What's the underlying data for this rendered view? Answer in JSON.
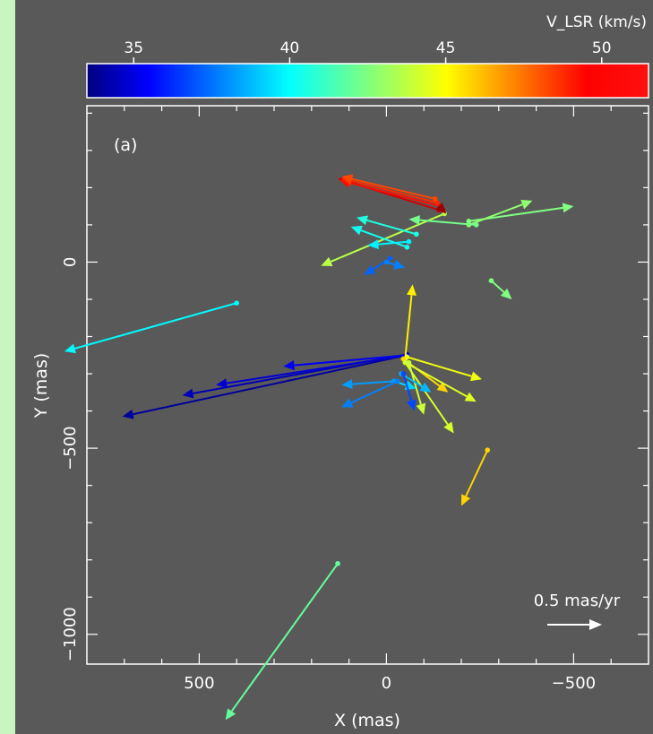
{
  "chart_data": {
    "type": "vector-field",
    "panel_label": "(a)",
    "xlabel": "X (mas)",
    "ylabel": "Y (mas)",
    "xlim": [
      800,
      -700
    ],
    "ylim": [
      -1080,
      420
    ],
    "x_ticks": [
      500,
      0,
      -500
    ],
    "x_tick_labels": [
      "500",
      "0",
      "−500"
    ],
    "y_ticks": [
      0,
      -500,
      -1000
    ],
    "y_tick_labels": [
      "0",
      "−500",
      "−1000"
    ],
    "colorbar": {
      "label": "V_LSR (km/s)",
      "vmin": 33.5,
      "vmax": 51.5,
      "ticks": [
        35,
        40,
        45,
        50
      ],
      "tick_labels": [
        "35",
        "40",
        "45",
        "50"
      ]
    },
    "scale_arrow": {
      "label": "0.5 mas/yr"
    },
    "colors": {
      "background": "#595959",
      "frame": "#c8f5c0",
      "axes": "#ffffff"
    },
    "features": [
      {
        "x": -155,
        "y": 130,
        "dx": 330,
        "dy": -140,
        "v": 43.5
      },
      {
        "x": -140,
        "y": 140,
        "dx": 270,
        "dy": 85,
        "v": 50.0
      },
      {
        "x": -145,
        "y": 150,
        "dx": 270,
        "dy": 70,
        "v": 49.0
      },
      {
        "x": -135,
        "y": 160,
        "dx": 255,
        "dy": 65,
        "v": 48.5
      },
      {
        "x": -130,
        "y": 170,
        "dx": 250,
        "dy": 60,
        "v": 48.0
      },
      {
        "x": -150,
        "y": 140,
        "dx": -10,
        "dy": -10,
        "v": 51.0
      },
      {
        "x": -220,
        "y": 110,
        "dx": -280,
        "dy": 40,
        "v": 42.5
      },
      {
        "x": -220,
        "y": 100,
        "dx": -170,
        "dy": 65,
        "v": 42.8
      },
      {
        "x": -240,
        "y": 100,
        "dx": 180,
        "dy": 15,
        "v": 42.3
      },
      {
        "x": -80,
        "y": 75,
        "dx": 160,
        "dy": 45,
        "v": 40.8
      },
      {
        "x": -55,
        "y": 40,
        "dx": 150,
        "dy": 55,
        "v": 40.5
      },
      {
        "x": -60,
        "y": 55,
        "dx": 110,
        "dy": -10,
        "v": 40.0
      },
      {
        "x": -10,
        "y": 10,
        "dx": 70,
        "dy": -45,
        "v": 37.5
      },
      {
        "x": 0,
        "y": 0,
        "dx": -50,
        "dy": -15,
        "v": 38.0
      },
      {
        "x": -280,
        "y": -50,
        "dx": -55,
        "dy": -50,
        "v": 42.5
      },
      {
        "x": 400,
        "y": -110,
        "dx": 460,
        "dy": -130,
        "v": 40.2
      },
      {
        "x": -55,
        "y": -250,
        "dx": 760,
        "dy": -165,
        "v": 34.0
      },
      {
        "x": -55,
        "y": -248,
        "dx": 600,
        "dy": -110,
        "v": 34.5
      },
      {
        "x": -55,
        "y": -250,
        "dx": 510,
        "dy": -80,
        "v": 35.0
      },
      {
        "x": -55,
        "y": -250,
        "dx": 330,
        "dy": -30,
        "v": 35.5
      },
      {
        "x": -50,
        "y": -260,
        "dx": -20,
        "dy": 200,
        "v": 45.0
      },
      {
        "x": -55,
        "y": -255,
        "dx": -200,
        "dy": -60,
        "v": 44.5
      },
      {
        "x": -45,
        "y": -260,
        "dx": -120,
        "dy": -90,
        "v": 45.5
      },
      {
        "x": -50,
        "y": -270,
        "dx": -130,
        "dy": -190,
        "v": 44.0
      },
      {
        "x": -60,
        "y": -275,
        "dx": -180,
        "dy": -100,
        "v": 44.2
      },
      {
        "x": -60,
        "y": -270,
        "dx": -40,
        "dy": -140,
        "v": 43.8
      },
      {
        "x": -20,
        "y": -320,
        "dx": -60,
        "dy": -20,
        "v": 39.5
      },
      {
        "x": -20,
        "y": -320,
        "dx": 140,
        "dy": -10,
        "v": 38.5
      },
      {
        "x": -40,
        "y": -300,
        "dx": -80,
        "dy": -50,
        "v": 39.0
      },
      {
        "x": -30,
        "y": -320,
        "dx": 150,
        "dy": -70,
        "v": 38.0
      },
      {
        "x": -45,
        "y": -300,
        "dx": -30,
        "dy": -100,
        "v": 37.0
      },
      {
        "x": -270,
        "y": -505,
        "dx": 70,
        "dy": -150,
        "v": 45.5
      },
      {
        "x": 130,
        "y": -810,
        "dx": 300,
        "dy": -420,
        "v": 42.0
      }
    ]
  }
}
